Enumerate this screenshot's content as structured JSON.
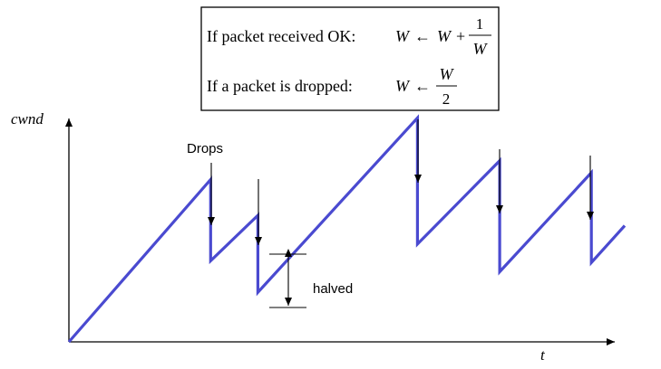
{
  "rules_box": {
    "rule_ok": {
      "condition": "If packet received OK:",
      "lhs": "W",
      "arrow": "←",
      "rhs_term": "W",
      "plus": "+",
      "numerator": "1",
      "denominator": "W"
    },
    "rule_drop": {
      "condition": "If a packet is dropped:",
      "lhs": "W",
      "arrow": "←",
      "numerator": "W",
      "denominator": "2"
    }
  },
  "axes": {
    "y_label": "cwnd",
    "x_label": "t"
  },
  "annotations": {
    "drops_label": "Drops",
    "halved_label": "halved"
  },
  "colors": {
    "window_line": "#4a4ad0",
    "axis": "#000000"
  },
  "diagram_data": {
    "type": "sawtooth",
    "description_series": "congestion window over time",
    "sawtooth_points": [
      [
        0,
        0
      ],
      [
        0.255,
        0.475
      ],
      [
        0.255,
        0.237
      ],
      [
        0.34,
        0.37
      ],
      [
        0.34,
        0.145
      ],
      [
        0.627,
        0.655
      ],
      [
        0.627,
        0.286
      ],
      [
        0.775,
        0.53
      ],
      [
        0.775,
        0.205
      ],
      [
        0.94,
        0.495
      ],
      [
        0.94,
        0.232
      ],
      [
        1.0,
        0.34
      ]
    ],
    "drop_times": [
      0.255,
      0.34,
      0.627,
      0.775,
      0.94
    ]
  }
}
